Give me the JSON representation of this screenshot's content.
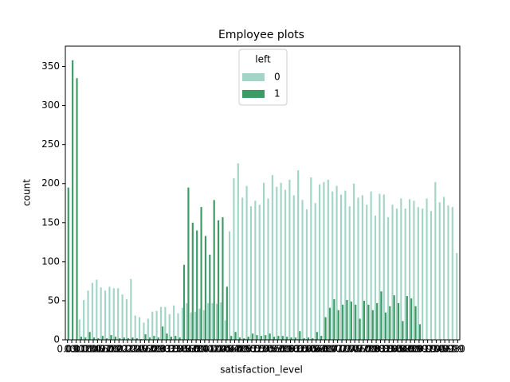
{
  "chart_data": {
    "type": "bar",
    "title": "Employee plots",
    "x_label": "satisfaction_level",
    "y_label": "count",
    "categories": [
      "0.09",
      "0.1",
      "0.11",
      "0.12",
      "0.13",
      "0.14",
      "0.15",
      "0.16",
      "0.17",
      "0.18",
      "0.19",
      "0.2",
      "0.21",
      "0.22",
      "0.23",
      "0.24",
      "0.25",
      "0.26",
      "0.27",
      "0.28",
      "0.29",
      "0.3",
      "0.31",
      "0.32",
      "0.33",
      "0.34",
      "0.35",
      "0.36",
      "0.37",
      "0.38",
      "0.39",
      "0.4",
      "0.41",
      "0.42",
      "0.43",
      "0.44",
      "0.45",
      "0.46",
      "0.47",
      "0.48",
      "0.49",
      "0.5",
      "0.51",
      "0.52",
      "0.53",
      "0.54",
      "0.55",
      "0.56",
      "0.57",
      "0.58",
      "0.59",
      "0.6",
      "0.61",
      "0.62",
      "0.63",
      "0.64",
      "0.65",
      "0.66",
      "0.67",
      "0.68",
      "0.69",
      "0.7",
      "0.71",
      "0.72",
      "0.73",
      "0.74",
      "0.75",
      "0.76",
      "0.77",
      "0.78",
      "0.79",
      "0.8",
      "0.81",
      "0.82",
      "0.83",
      "0.84",
      "0.85",
      "0.86",
      "0.87",
      "0.88",
      "0.89",
      "0.9",
      "0.91",
      "0.92",
      "0.93",
      "0.94",
      "0.95",
      "0.96",
      "0.97",
      "0.98",
      "0.99",
      "1.0"
    ],
    "legend_title": "left",
    "series": [
      {
        "name": "0",
        "color": "#a3d5c6",
        "values": [
          0,
          0,
          0,
          26,
          51,
          63,
          73,
          77,
          67,
          63,
          68,
          66,
          66,
          58,
          52,
          78,
          31,
          29,
          22,
          27,
          36,
          37,
          42,
          42,
          33,
          44,
          34,
          41,
          47,
          35,
          36,
          40,
          38,
          47,
          47,
          46,
          48,
          25,
          139,
          207,
          226,
          182,
          197,
          171,
          178,
          173,
          201,
          181,
          211,
          196,
          201,
          192,
          205,
          185,
          217,
          179,
          167,
          208,
          175,
          199,
          202,
          205,
          190,
          197,
          186,
          191,
          171,
          200,
          182,
          185,
          173,
          190,
          159,
          187,
          186,
          157,
          173,
          168,
          181,
          168,
          180,
          178,
          170,
          168,
          181,
          165,
          202,
          176,
          183,
          172,
          170,
          111
        ]
      },
      {
        "name": "1",
        "color": "#3d9a64",
        "values": [
          195,
          358,
          335,
          4,
          3,
          10,
          3,
          2,
          5,
          2,
          6,
          4,
          2,
          3,
          2,
          3,
          2,
          1,
          7,
          3,
          5,
          3,
          17,
          8,
          4,
          5,
          3,
          96,
          195,
          150,
          140,
          170,
          133,
          109,
          179,
          153,
          157,
          68,
          5,
          10,
          3,
          2,
          4,
          8,
          6,
          5,
          6,
          8,
          4,
          5,
          5,
          4,
          3,
          3,
          11,
          2,
          3,
          2,
          10,
          5,
          29,
          41,
          52,
          38,
          45,
          51,
          49,
          45,
          27,
          50,
          45,
          38,
          47,
          62,
          35,
          43,
          57,
          47,
          24,
          56,
          53,
          43,
          20,
          0,
          0,
          0,
          0,
          0,
          0,
          0,
          0,
          0
        ]
      }
    ],
    "ylim": [
      0,
      376
    ],
    "yticks": [
      0,
      50,
      100,
      150,
      200,
      250,
      300,
      350
    ],
    "legend_position": "upper center"
  }
}
